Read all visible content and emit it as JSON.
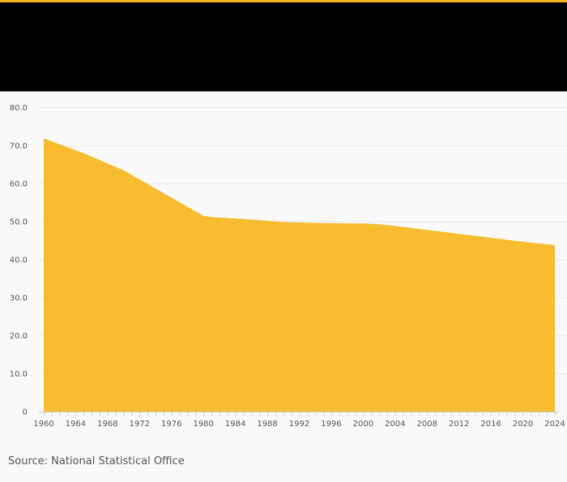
{
  "header": {
    "title": ""
  },
  "source_note": "Source: National Statistical Office",
  "colors": {
    "accent": "#f5b41f",
    "header_background": "#000000",
    "area_fill": "#f9bc30",
    "gridline": "#e6e6e6",
    "background": "#f9f9f9"
  },
  "chart_data": {
    "type": "area",
    "title": "",
    "xlabel": "",
    "ylabel": "",
    "ylim": [
      0,
      80
    ],
    "xlim": [
      1960,
      2024
    ],
    "grid": true,
    "y_ticks": [
      0,
      10,
      20,
      30,
      40,
      50,
      60,
      70,
      80
    ],
    "y_tick_labels": [
      "0",
      "10.0",
      "20.0",
      "30.0",
      "40.0",
      "50.0",
      "60.0",
      "70.0",
      "80.0"
    ],
    "x_ticks": [
      1960,
      1964,
      1968,
      1972,
      1976,
      1980,
      1984,
      1988,
      1992,
      1996,
      2000,
      2004,
      2008,
      2012,
      2016,
      2020,
      2024
    ],
    "x_tick_labels": [
      "1960",
      "1964",
      "1968",
      "1972",
      "1976",
      "1980",
      "1984",
      "1988",
      "1992",
      "1996",
      "2000",
      "2004",
      "2008",
      "2012",
      "2016",
      "2020",
      "2024"
    ],
    "series": [
      {
        "x": [
          1960,
          1965,
          1970,
          1975,
          1980,
          1981,
          1985,
          1990,
          1995,
          2000,
          2002,
          2005,
          2010,
          2015,
          2020,
          2024
        ],
        "values": [
          71.9,
          68.0,
          63.5,
          57.5,
          51.5,
          51.2,
          50.7,
          49.9,
          49.6,
          49.5,
          49.3,
          48.6,
          47.3,
          46.0,
          44.7,
          43.8
        ]
      }
    ]
  }
}
